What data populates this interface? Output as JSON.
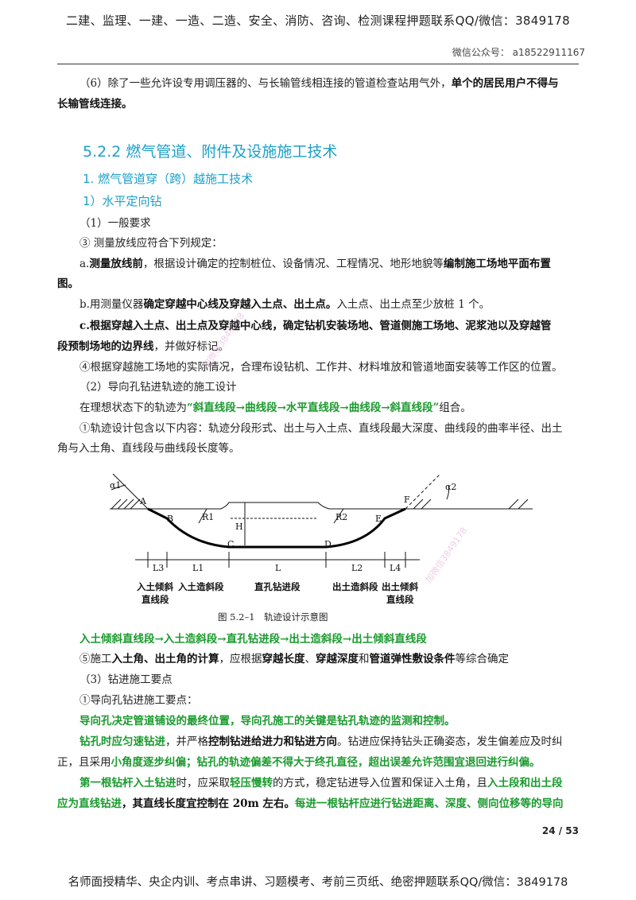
{
  "header": {
    "text": "二建、监理、一建、一造、二造、安全、消防、咨询、检测课程押题联系QQ/微信：3849178",
    "wechat": "微信公众号： a18522911167"
  },
  "para6": {
    "plain": "（6）除了一些允许设专用调压器的、与长输管线相连接的管道检查站用气外，",
    "bold": "单个的居民用户不得与",
    "bold2": "长输管线连接。"
  },
  "h_522": "5.2.2 燃气管道、附件及设施施工技术",
  "h_1": "1. 燃气管道穿（跨）越施工技术",
  "h_1_1": "1）水平定向钻",
  "s1": "（1）一般要求",
  "s3": "③ 测量放线应符合下列规定：",
  "a": {
    "p1": "a.",
    "b1": "测量放线前",
    "p2": "，根据设计确定的控制桩位、设备情况、工程情况、地形地貌等",
    "b2": "编制施工场地平面布置",
    "b3": "图。"
  },
  "b": {
    "p1": "b.用测量仪器",
    "b1": "确定穿越中心线及穿越入土点、出土点。",
    "p2": "入土点、出土点至少放桩 1 个。"
  },
  "c": {
    "b1": "c.根据穿越入土点、出土点及穿越中心线，确定钻机安装场地、管道侧施工场地、泥浆池以及穿越管",
    "b2": "段预制场地的边界线",
    "p1": "，并做好标记。"
  },
  "s4": "④根据穿越施工场地的实际情况，合理布设钻机、工作井、材料堆放和管道地面安装等工作区的位置。",
  "s_guide": "（2）导向孔钻进轨迹的施工设计",
  "traj": {
    "p1": "在理想状态下的轨迹为",
    "g1": "“斜直线段→曲线段→水平直线段→曲线段→斜直线段”",
    "p2": "组合。"
  },
  "s1b": {
    "l1": "①轨迹设计包含以下内容：轨迹分段形式、出土与入土点、直线段最大深度、曲线段的曲率半径、出土",
    "l2": "角与入土角、直线段与曲线段长度等。"
  },
  "diagram": {
    "labels": {
      "alpha1": "α1",
      "alpha2": "α2",
      "A": "A",
      "B": "B",
      "C": "C",
      "D": "D",
      "E": "E",
      "F": "F",
      "R1": "R1",
      "R2": "R2",
      "H": "H",
      "L3": "L3",
      "L1": "L1",
      "L": "L",
      "L2": "L2",
      "L4": "L4"
    },
    "seg1a": "入土倾斜",
    "seg1b": "直线段",
    "seg2": "入土造斜段",
    "seg3": "直孔钻进段",
    "seg4": "出土造斜段",
    "seg5a": "出土倾斜",
    "seg5b": "直线段",
    "caption": "图 5.2–1　轨迹设计示意图"
  },
  "seq": "入土倾斜直线段→入土造斜段→直孔钻进段→出土造斜段→出土倾斜直线段",
  "s5": {
    "p1": "⑤施工",
    "b1": "入土角、出土角的计算",
    "p2": "，应根据",
    "b2": "穿越长度",
    "p3": "、",
    "b3": "穿越深度",
    "p4": "和",
    "b4": "管道弹性敷设条件",
    "p5": "等综合确定"
  },
  "s_drill": "（3）钻进施工要点",
  "s_guide_pts": "①导向孔钻进施工要点：",
  "g_pos": "导向孔决定管道铺设的最终位置，导向孔施工的关键是钻孔轨迹的监测和控制。",
  "slow": {
    "g1": "钻孔时应匀速钻进",
    "p1": "，并严格",
    "b1": "控制钻进给进力和钻进方向",
    "p2": "。钻进应保持钻头正确姿态，发生偏差应及时纠",
    "p3": "正，且采用",
    "g2": "小角度逐步纠偏；钻孔的轨迹偏差不得大于终孔直径，超出误差允许范围宜退回进行纠偏。"
  },
  "first": {
    "g1": "第一根钻杆入土钻进",
    "p1": "时，应采取",
    "g2": "轻压慢转",
    "p2": "的方式，稳定钻进导入位置和保证入土角，且",
    "g3": "入土段和出土段",
    "g4": "应为直线钻进",
    "b1": "，其直线长度宜控制在 20m 左右。",
    "g5": "每进一根钻杆应进行钻进距离、深度、侧向位移等的导向"
  },
  "page_no": "24 / 53",
  "footer": "名师面授精华、央企内训、考点串讲、习题模考、考前三页纸、绝密押题联系QQ/微信：3849178",
  "watermark": "加微信3849178",
  "colors": {
    "green": "#1a9a2e",
    "heading": "#1ca0c8"
  }
}
